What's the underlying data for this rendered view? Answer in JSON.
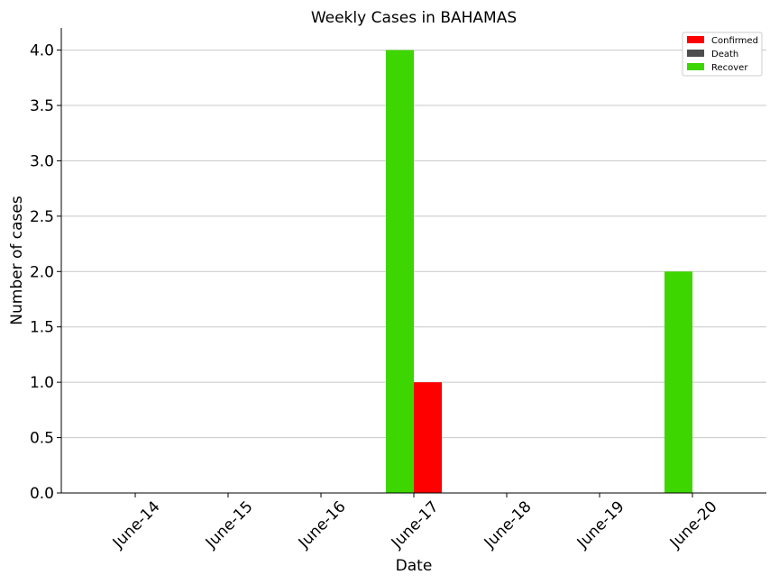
{
  "chart_data": {
    "type": "bar",
    "title": "Weekly Cases in BAHAMAS",
    "xlabel": "Date",
    "ylabel": "Number of cases",
    "categories": [
      "June-14",
      "June-15",
      "June-16",
      "June-17",
      "June-18",
      "June-19",
      "June-20"
    ],
    "series": [
      {
        "name": "Confirmed",
        "color": "#ff0000",
        "values": [
          0,
          0,
          0,
          1,
          0,
          0,
          0
        ]
      },
      {
        "name": "Death",
        "color": "#4d4d4d",
        "values": [
          0,
          0,
          0,
          0,
          0,
          0,
          0
        ]
      },
      {
        "name": "Recover",
        "color": "#3dd600",
        "values": [
          0,
          0,
          0,
          4,
          0,
          0,
          2
        ]
      }
    ],
    "ylim": [
      0,
      4.2
    ],
    "yticks": [
      "0.0",
      "0.5",
      "1.0",
      "1.5",
      "2.0",
      "2.5",
      "3.0",
      "3.5",
      "4.0"
    ],
    "grid": "horizontal",
    "legend_position": "top-right"
  }
}
